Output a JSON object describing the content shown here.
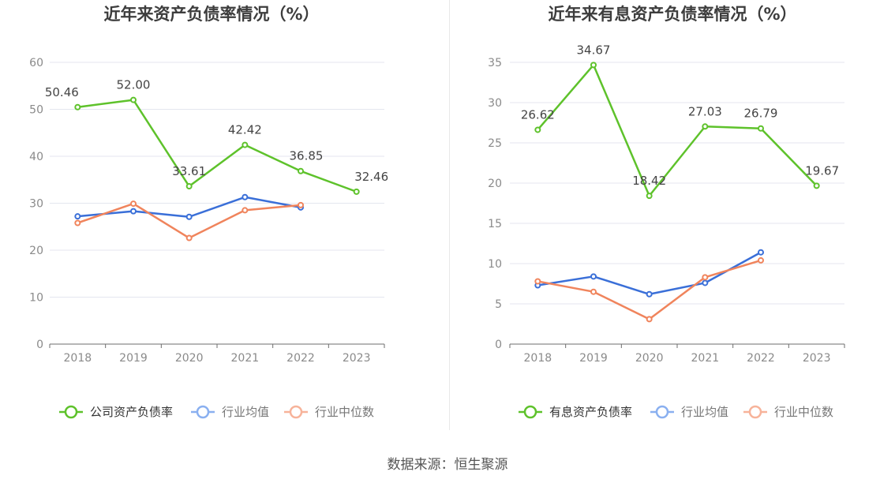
{
  "colors": {
    "company": "#5ec22b",
    "industry_avg": "#3a6fd8",
    "industry_median": "#f0845c",
    "legend_avg": "#8ab0f0",
    "legend_median": "#f7b39a",
    "title": "#3d3d3d",
    "axis_text": "#8a8a8a",
    "grid": "#e4e6ef",
    "axis_line": "#6e6e6e",
    "divider": "#e8e8e8",
    "label": "#444444"
  },
  "source_text": "数据来源：恒生聚源",
  "chart_data": [
    {
      "type": "line",
      "title": "近年来资产负债率情况（%）",
      "x": [
        "2018",
        "2019",
        "2020",
        "2021",
        "2022",
        "2023"
      ],
      "ylim": [
        0,
        60
      ],
      "yticks": [
        0,
        10,
        20,
        30,
        40,
        50,
        60
      ],
      "grid": true,
      "legend_position": "bottom",
      "series": [
        {
          "key": "company",
          "name": "公司资产负债率",
          "values": [
            50.46,
            52.0,
            33.61,
            42.42,
            36.85,
            32.46
          ],
          "labels": [
            "50.46",
            "52.00",
            "33.61",
            "42.42",
            "36.85",
            "32.46"
          ]
        },
        {
          "key": "industry_avg",
          "name": "行业均值",
          "values": [
            27.2,
            28.3,
            27.1,
            31.3,
            29.1,
            null
          ]
        },
        {
          "key": "industry_median",
          "name": "行业中位数",
          "values": [
            25.8,
            29.9,
            22.6,
            28.5,
            29.6,
            null
          ]
        }
      ]
    },
    {
      "type": "line",
      "title": "近年来有息资产负债率情况（%）",
      "x": [
        "2018",
        "2019",
        "2020",
        "2021",
        "2022",
        "2023"
      ],
      "ylim": [
        0,
        35
      ],
      "yticks": [
        0,
        5,
        10,
        15,
        20,
        25,
        30,
        35
      ],
      "grid": true,
      "legend_position": "bottom",
      "series": [
        {
          "key": "company",
          "name": "有息资产负债率",
          "values": [
            26.62,
            34.67,
            18.42,
            27.03,
            26.79,
            19.67
          ],
          "labels": [
            "26.62",
            "34.67",
            "18.42",
            "27.03",
            "26.79",
            "19.67"
          ]
        },
        {
          "key": "industry_avg",
          "name": "行业均值",
          "values": [
            7.3,
            8.4,
            6.2,
            7.6,
            11.4,
            null
          ]
        },
        {
          "key": "industry_median",
          "name": "行业中位数",
          "values": [
            7.8,
            6.5,
            3.1,
            8.3,
            10.4,
            null
          ]
        }
      ]
    }
  ]
}
